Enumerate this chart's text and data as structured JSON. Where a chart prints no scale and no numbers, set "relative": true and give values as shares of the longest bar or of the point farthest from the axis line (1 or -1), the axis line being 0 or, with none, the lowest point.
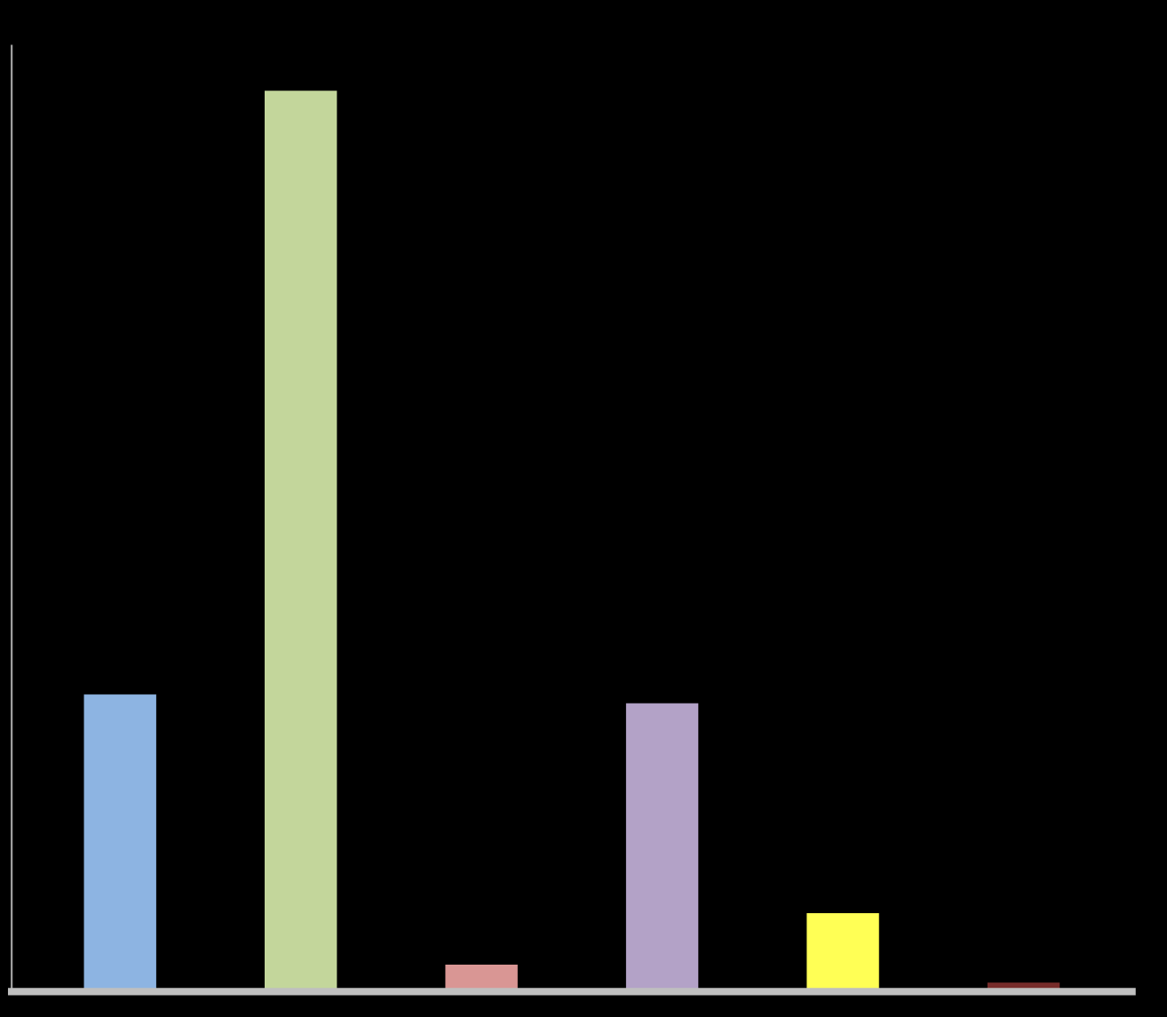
{
  "chart_data": {
    "type": "bar",
    "relative": true,
    "categories": [
      null,
      null,
      null,
      null,
      null,
      null
    ],
    "values": [
      0.33,
      1,
      0.03,
      0.32,
      0.087,
      0.01
    ],
    "colors": [
      "#8db4e2",
      "#c3d69b",
      "#d99694",
      "#b3a2c7",
      "#ffff55",
      "#772c2a"
    ],
    "grid": false,
    "legend": false
  }
}
